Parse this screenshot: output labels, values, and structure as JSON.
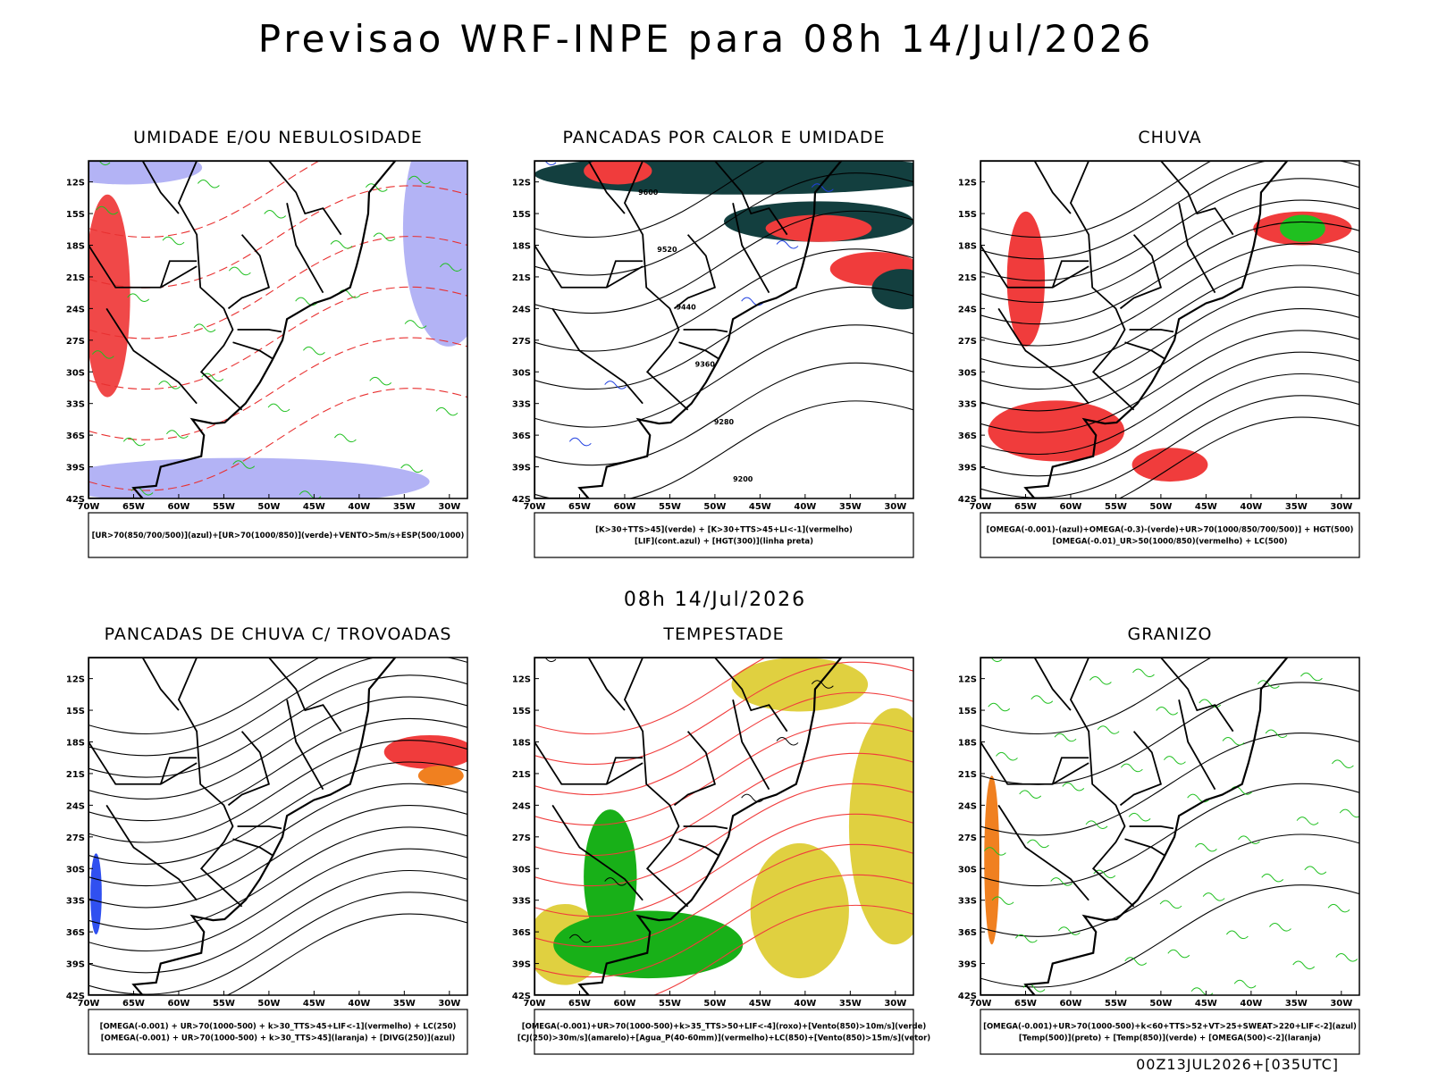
{
  "header": {
    "title": "Previsao WRF-INPE  para 08h 14/Jul/2026",
    "mid_date": "08h 14/Jul/2026",
    "footer": "00Z13JUL2026+[035UTC]"
  },
  "axes": {
    "lat_labels": [
      "12S",
      "15S",
      "18S",
      "21S",
      "24S",
      "27S",
      "30S",
      "33S",
      "36S",
      "39S",
      "42S"
    ],
    "lon_labels": [
      "70W",
      "65W",
      "60W",
      "55W",
      "50W",
      "45W",
      "40W",
      "35W",
      "30W"
    ]
  },
  "panels": [
    {
      "title": "UMIDADE E/OU NEBULOSIDADE",
      "legend": [
        "[UR>70(850/700/500)](azul)+[UR>70(1000/850)](verde)+VENTO>5m/s+ESP(500/1000)"
      ]
    },
    {
      "title": "PANCADAS POR CALOR E UMIDADE",
      "legend": [
        "[K>30+TTS>45](verde) + [K>30+TTS>45+LI<-1](vermelho)",
        "[LIF](cont.azul) + [HGT(300)](linha preta)"
      ],
      "contour_labels": [
        "9600",
        "9520",
        "9440",
        "9360",
        "9280",
        "9200"
      ]
    },
    {
      "title": "CHUVA",
      "legend": [
        "[OMEGA(-0.001)-(azul)+OMEGA(-0.3)-(verde)+UR>70(1000/850/700/500)] + HGT(500)",
        "[OMEGA(-0.01)_UR>50(1000/850)(vermelho) + LC(500)"
      ]
    },
    {
      "title": "PANCADAS DE CHUVA C/ TROVOADAS",
      "legend": [
        "[OMEGA(-0.001) + UR>70(1000-500) + k>30_TTS>45+LIF<-1](vermelho) + LC(250)",
        "[OMEGA(-0.001) + UR>70(1000-500) + k>30_TTS>45](laranja) + [DIVG(250)](azul)"
      ]
    },
    {
      "title": "TEMPESTADE",
      "legend": [
        "[OMEGA(-0.001)+UR>70(1000-500)+k>35_TTS>50+LIF<-4](roxo)+[Vento(850)>10m/s](verde)",
        "[CJ(250)>30m/s](amarelo)+[Agua_P(40-60mm)](vermelho)+LC(850)+[Vento(850)>15m/s](vetor)"
      ]
    },
    {
      "title": "GRANIZO",
      "legend": [
        "[OMEGA(-0.001)+UR>70(1000-500)+k<60+TTS>52+VT>25+SWEAT>220+LIF<-2](azul)",
        "[Temp(500)](preto) + [Temp(850)](verde) + [OMEGA(500)<-2](laranja)"
      ]
    }
  ]
}
